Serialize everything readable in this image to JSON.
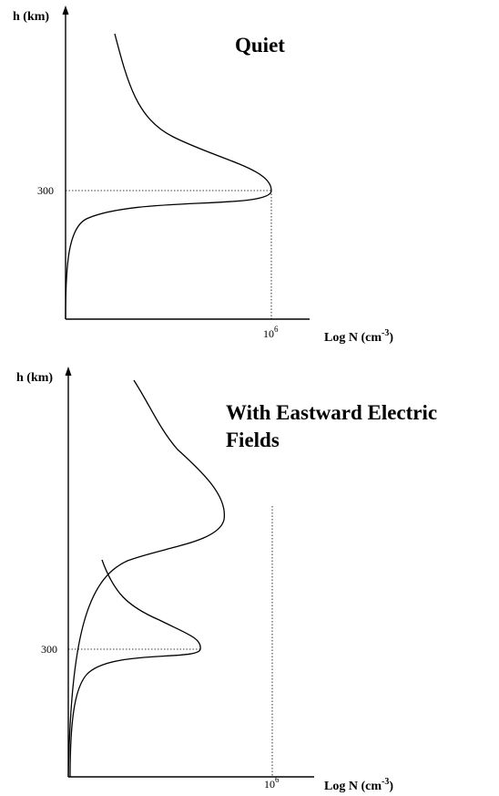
{
  "chart_data": [
    {
      "type": "line",
      "title": "Quiet",
      "ylabel": "h (km)",
      "xlabel_base": "Log N (cm",
      "xlabel_sup": "-3",
      "xlabel_close": ")",
      "y_tick_label": "300",
      "x_tick_base": "10",
      "x_tick_sup": "6",
      "reference_lines": {
        "h": 300,
        "x": "10^6"
      },
      "series": [
        {
          "peaks": [
            {
              "h": 300,
              "log_n": "10^6"
            }
          ]
        }
      ]
    },
    {
      "type": "line",
      "title_lines": [
        "With Eastward Electric",
        "Fields"
      ],
      "ylabel": "h (km)",
      "xlabel_base": "Log N (cm",
      "xlabel_sup": "-3",
      "xlabel_close": ")",
      "y_tick_label": "300",
      "x_tick_base": "10",
      "x_tick_sup": "6",
      "reference_lines": {
        "h": 300,
        "x": "10^6"
      },
      "series": [
        {
          "peaks": [
            {
              "h": "above 300",
              "log_n": "below 10^6"
            }
          ]
        },
        {
          "peaks": [
            {
              "h": 300,
              "log_n": "below 10^6"
            }
          ]
        }
      ]
    }
  ]
}
